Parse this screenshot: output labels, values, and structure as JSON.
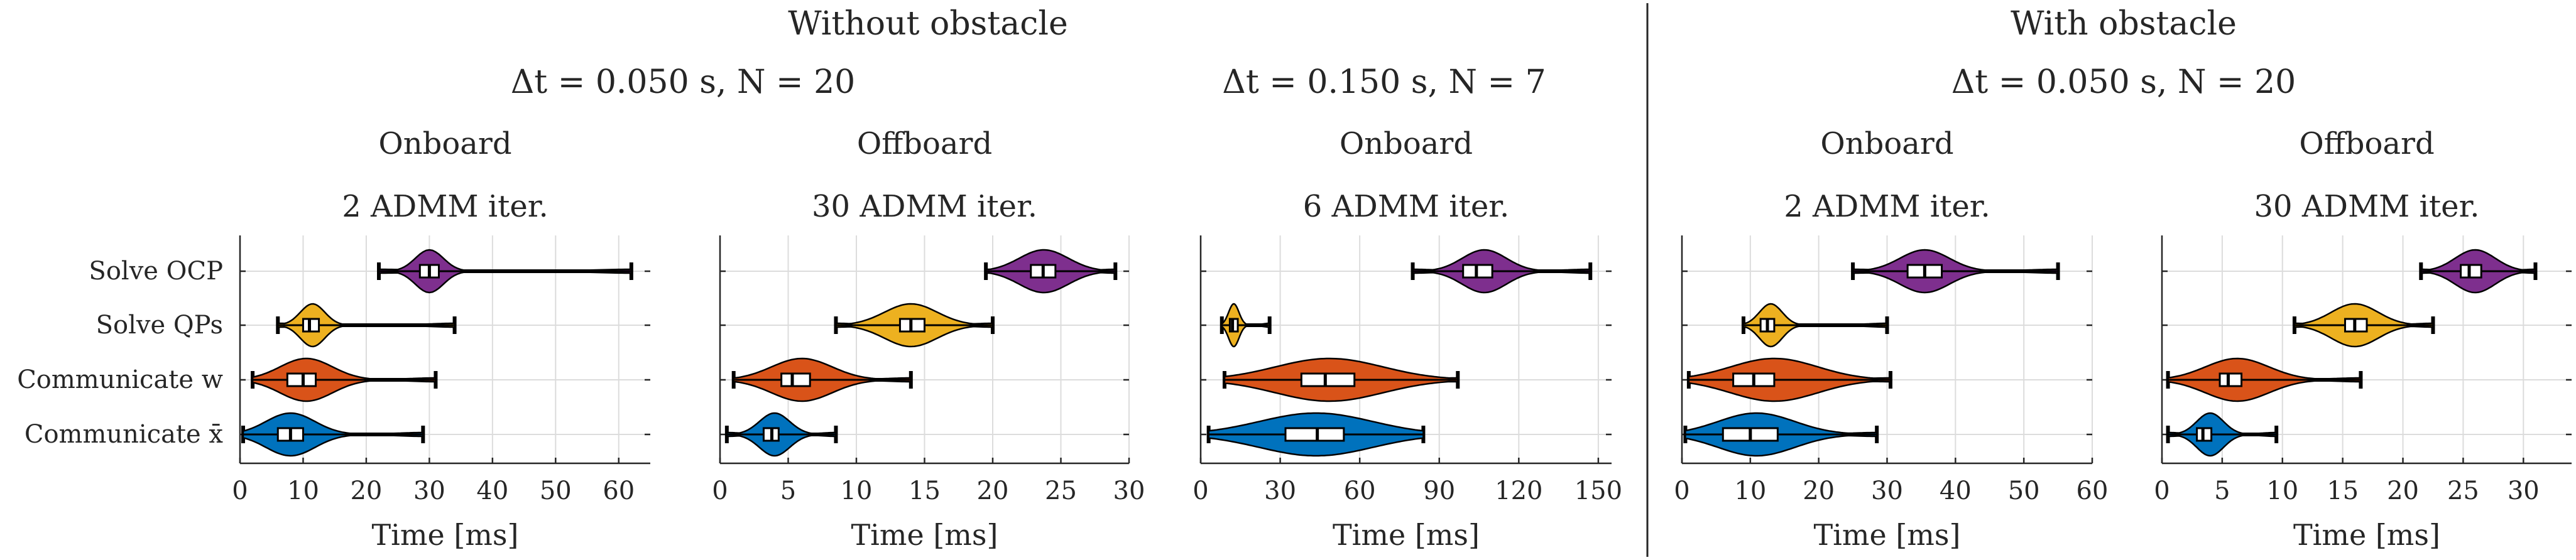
{
  "groups": [
    {
      "label": "Without obstacle",
      "subtitles": [
        "Δt = 0.050 s, N = 20",
        "Δt = 0.150 s, N = 7"
      ]
    },
    {
      "label": "With obstacle",
      "subtitles": [
        "Δt = 0.050 s, N = 20"
      ]
    }
  ],
  "colors": {
    "solve_ocp": "#7E2F8E",
    "solve_qps": "#EDB120",
    "communicate_w": "#D95319",
    "communicate_x": "#0072BD"
  },
  "chart_data": [
    {
      "type": "violin",
      "title": "Onboard",
      "subtitle": "2 ADMM iter.",
      "xlabel": "Time [ms]",
      "categories": [
        "Solve OCP",
        "Solve QPs",
        "Communicate w",
        "Communicate x̄"
      ],
      "xlim": [
        0,
        65
      ],
      "xticks": [
        "0",
        "10",
        "20",
        "30",
        "40",
        "50",
        "60"
      ],
      "series": [
        {
          "min": 22,
          "q1": 28.5,
          "median": 30,
          "q3": 31.5,
          "max": 62,
          "spread_low": 26,
          "spread_high": 34
        },
        {
          "min": 6,
          "q1": 10,
          "median": 11,
          "q3": 12.5,
          "max": 34,
          "spread_low": 8,
          "spread_high": 15
        },
        {
          "min": 2,
          "q1": 7.5,
          "median": 10,
          "q3": 12,
          "max": 31,
          "spread_low": 3,
          "spread_high": 18
        },
        {
          "min": 0.5,
          "q1": 6,
          "median": 8,
          "q3": 10,
          "max": 29,
          "spread_low": 1,
          "spread_high": 15
        }
      ]
    },
    {
      "type": "violin",
      "title": "Offboard",
      "subtitle": "30 ADMM iter.",
      "xlabel": "Time [ms]",
      "categories": [
        "Solve OCP",
        "Solve QPs",
        "Communicate w",
        "Communicate x̄"
      ],
      "xlim": [
        0,
        30
      ],
      "xticks": [
        "0",
        "5",
        "10",
        "15",
        "20",
        "25",
        "30"
      ],
      "series": [
        {
          "min": 19.5,
          "q1": 22.8,
          "median": 23.7,
          "q3": 24.6,
          "max": 29,
          "spread_low": 20.5,
          "spread_high": 27
        },
        {
          "min": 8.5,
          "q1": 13.2,
          "median": 14,
          "q3": 15,
          "max": 20,
          "spread_low": 10.5,
          "spread_high": 17.5
        },
        {
          "min": 1,
          "q1": 4.5,
          "median": 5.3,
          "q3": 6.6,
          "max": 14,
          "spread_low": 2,
          "spread_high": 10
        },
        {
          "min": 0.5,
          "q1": 3.2,
          "median": 3.8,
          "q3": 4.3,
          "max": 8.5,
          "spread_low": 2,
          "spread_high": 6
        }
      ]
    },
    {
      "type": "violin",
      "title": "Onboard",
      "subtitle": "6 ADMM iter.",
      "xlabel": "Time [ms]",
      "categories": [
        "Solve OCP",
        "Solve QPs",
        "Communicate w",
        "Communicate x̄"
      ],
      "xlim": [
        0,
        155
      ],
      "xticks": [
        "0",
        "30",
        "60",
        "90",
        "120",
        "150"
      ],
      "series": [
        {
          "min": 80,
          "q1": 99,
          "median": 104,
          "q3": 110,
          "max": 147,
          "spread_low": 92,
          "spread_high": 122
        },
        {
          "min": 8,
          "q1": 11,
          "median": 12,
          "q3": 14,
          "max": 26,
          "spread_low": 9,
          "spread_high": 16
        },
        {
          "min": 9,
          "q1": 38,
          "median": 47,
          "q3": 58,
          "max": 97,
          "spread_low": 12,
          "spread_high": 85
        },
        {
          "min": 3,
          "q1": 32,
          "median": 44,
          "q3": 54,
          "max": 84,
          "spread_low": 5,
          "spread_high": 82
        }
      ]
    },
    {
      "type": "violin",
      "title": "Onboard",
      "subtitle": "2 ADMM iter.",
      "xlabel": "Time [ms]",
      "categories": [
        "Solve OCP",
        "Solve QPs",
        "Communicate w",
        "Communicate x̄"
      ],
      "xlim": [
        0,
        60
      ],
      "xticks": [
        "0",
        "10",
        "20",
        "30",
        "40",
        "50",
        "60"
      ],
      "series": [
        {
          "min": 25,
          "q1": 33,
          "median": 35.5,
          "q3": 38,
          "max": 55,
          "spread_low": 29,
          "spread_high": 42
        },
        {
          "min": 9,
          "q1": 11.5,
          "median": 12.5,
          "q3": 13.5,
          "max": 30,
          "spread_low": 10,
          "spread_high": 16
        },
        {
          "min": 1,
          "q1": 7.5,
          "median": 10.5,
          "q3": 13.5,
          "max": 30.5,
          "spread_low": 2,
          "spread_high": 25
        },
        {
          "min": 0.5,
          "q1": 6,
          "median": 10,
          "q3": 14,
          "max": 28.5,
          "spread_low": 0.8,
          "spread_high": 21
        }
      ]
    },
    {
      "type": "violin",
      "title": "Offboard",
      "subtitle": "30 ADMM iter.",
      "xlabel": "Time [ms]",
      "categories": [
        "Solve OCP",
        "Solve QPs",
        "Communicate w",
        "Communicate x̄"
      ],
      "xlim": [
        0,
        34
      ],
      "xticks": [
        "0",
        "5",
        "10",
        "15",
        "20",
        "25",
        "30"
      ],
      "series": [
        {
          "min": 21.5,
          "q1": 24.8,
          "median": 25.5,
          "q3": 26.5,
          "max": 31,
          "spread_low": 23,
          "spread_high": 29
        },
        {
          "min": 11,
          "q1": 15.2,
          "median": 16,
          "q3": 17,
          "max": 22.5,
          "spread_low": 12.5,
          "spread_high": 19.5
        },
        {
          "min": 0.5,
          "q1": 4.8,
          "median": 5.5,
          "q3": 6.6,
          "max": 16.5,
          "spread_low": 1.5,
          "spread_high": 11
        },
        {
          "min": 0.5,
          "q1": 2.9,
          "median": 3.4,
          "q3": 4.1,
          "max": 9.5,
          "spread_low": 2,
          "spread_high": 6
        }
      ]
    }
  ]
}
